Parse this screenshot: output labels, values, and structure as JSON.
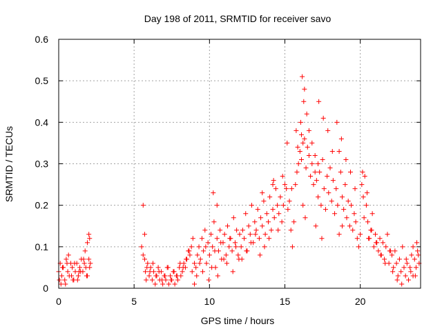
{
  "chart_data": {
    "type": "scatter",
    "title": "Day 198 of 2011, SRMTID for receiver savo",
    "xlabel": "GPS time / hours",
    "ylabel": "SRMTID / TECUs",
    "xlim": [
      0,
      24
    ],
    "ylim": [
      0,
      0.6
    ],
    "xticks": [
      0,
      5,
      10,
      15,
      20
    ],
    "xtick_labels": [
      "0",
      "5",
      "10",
      "15",
      "20"
    ],
    "yticks": [
      0,
      0.1,
      0.2,
      0.3,
      0.4,
      0.5,
      0.6
    ],
    "ytick_labels": [
      "0",
      "0.1",
      "0.2",
      "0.3",
      "0.4",
      "0.5",
      "0.6"
    ],
    "grid": true,
    "marker": "+",
    "color": "#ff0000",
    "series": [
      {
        "name": "SRMTID",
        "x": [
          0.0,
          0.1,
          0.2,
          0.3,
          0.4,
          0.5,
          0.6,
          0.7,
          0.8,
          0.9,
          1.0,
          1.1,
          1.2,
          1.3,
          1.4,
          1.5,
          1.6,
          1.7,
          1.8,
          1.9,
          2.0,
          2.1,
          0.05,
          0.25,
          0.45,
          0.65,
          0.85,
          1.05,
          1.25,
          1.45,
          1.65,
          1.85,
          2.05,
          0.15,
          0.55,
          0.95,
          1.35,
          1.75,
          2.0,
          1.9,
          2.05,
          5.5,
          5.6,
          5.7,
          5.75,
          5.8,
          5.9,
          6.0,
          6.1,
          6.2,
          6.3,
          6.4,
          6.5,
          6.6,
          6.7,
          6.8,
          6.9,
          7.0,
          7.1,
          7.2,
          7.3,
          7.4,
          7.5,
          7.6,
          7.7,
          7.8,
          7.9,
          8.0,
          8.1,
          8.2,
          8.3,
          8.4,
          8.5,
          8.6,
          8.7,
          8.8,
          8.9,
          9.0,
          5.6,
          5.7,
          5.85,
          6.05,
          6.25,
          6.45,
          6.65,
          6.85,
          7.05,
          7.25,
          7.45,
          7.65,
          7.85,
          8.05,
          8.25,
          8.45,
          8.65,
          8.85,
          9.1,
          9.2,
          9.3,
          9.4,
          9.5,
          9.6,
          9.7,
          9.8,
          9.9,
          10.0,
          10.1,
          10.2,
          10.3,
          10.4,
          10.5,
          10.6,
          10.7,
          10.8,
          10.9,
          11.0,
          11.1,
          11.2,
          11.3,
          11.4,
          11.5,
          11.6,
          11.7,
          11.8,
          11.9,
          12.0,
          9.15,
          9.35,
          9.55,
          9.75,
          9.95,
          10.15,
          10.35,
          10.55,
          10.75,
          10.95,
          11.15,
          11.35,
          11.55,
          11.75,
          11.95,
          10.25,
          10.5,
          9.0,
          12.1,
          12.2,
          12.3,
          12.4,
          12.5,
          12.6,
          12.7,
          12.8,
          12.9,
          13.0,
          13.1,
          13.2,
          13.3,
          13.4,
          13.5,
          13.6,
          13.7,
          13.8,
          13.9,
          14.0,
          14.1,
          14.2,
          14.3,
          14.4,
          14.5,
          14.6,
          14.7,
          14.8,
          14.9,
          15.0,
          12.15,
          12.45,
          12.75,
          13.05,
          13.35,
          13.65,
          13.95,
          14.25,
          14.55,
          14.85,
          13.5,
          14.2,
          15.1,
          15.2,
          15.3,
          15.4,
          15.5,
          15.6,
          15.7,
          15.8,
          15.9,
          16.0,
          16.1,
          16.2,
          16.3,
          16.4,
          16.5,
          16.6,
          16.7,
          16.8,
          16.9,
          17.0,
          15.15,
          15.45,
          15.75,
          16.05,
          16.25,
          16.15,
          16.3,
          16.45,
          16.6,
          16.8,
          17.0,
          17.2,
          16.2,
          16.35,
          15.85,
          16.1,
          17.1,
          17.2,
          17.3,
          17.4,
          17.5,
          17.6,
          17.7,
          17.8,
          17.9,
          18.0,
          18.1,
          18.2,
          18.3,
          18.4,
          18.5,
          18.6,
          18.7,
          18.8,
          18.9,
          19.0,
          19.1,
          19.2,
          19.3,
          19.4,
          19.5,
          19.6,
          19.7,
          19.8,
          19.9,
          20.0,
          17.25,
          17.55,
          17.85,
          18.15,
          18.45,
          18.75,
          19.05,
          19.35,
          19.65,
          17.05,
          17.45,
          18.6,
          18.8,
          20.1,
          20.2,
          20.3,
          20.4,
          20.5,
          20.6,
          20.7,
          20.8,
          20.9,
          21.0,
          21.1,
          21.2,
          21.3,
          21.4,
          21.5,
          21.6,
          21.7,
          21.8,
          21.9,
          22.0,
          20.15,
          20.45,
          20.75,
          21.05,
          21.35,
          21.65,
          21.95,
          20.25,
          20.55,
          22.1,
          22.2,
          22.3,
          22.4,
          22.5,
          22.6,
          22.7,
          22.8,
          22.9,
          23.0,
          23.1,
          23.2,
          23.3,
          23.4,
          23.5,
          23.6,
          23.7,
          23.8,
          23.9,
          22.15,
          22.45,
          22.75,
          23.05,
          23.35,
          23.65,
          23.85,
          23.5,
          23.75
        ],
        "y": [
          0.04,
          0.06,
          0.03,
          0.05,
          0.02,
          0.07,
          0.04,
          0.03,
          0.06,
          0.05,
          0.02,
          0.04,
          0.06,
          0.03,
          0.05,
          0.07,
          0.04,
          0.06,
          0.05,
          0.03,
          0.07,
          0.06,
          0.02,
          0.05,
          0.01,
          0.08,
          0.03,
          0.06,
          0.02,
          0.04,
          0.07,
          0.03,
          0.05,
          0.01,
          0.06,
          0.02,
          0.04,
          0.09,
          0.13,
          0.11,
          0.12,
          0.1,
          0.2,
          0.13,
          0.04,
          0.02,
          0.06,
          0.03,
          0.05,
          0.02,
          0.04,
          0.01,
          0.03,
          0.05,
          0.02,
          0.04,
          0.01,
          0.03,
          0.02,
          0.05,
          0.01,
          0.03,
          0.02,
          0.04,
          0.01,
          0.03,
          0.02,
          0.05,
          0.03,
          0.04,
          0.06,
          0.05,
          0.07,
          0.09,
          0.08,
          0.1,
          0.12,
          0.06,
          0.08,
          0.07,
          0.05,
          0.04,
          0.06,
          0.03,
          0.04,
          0.02,
          0.03,
          0.05,
          0.02,
          0.04,
          0.03,
          0.06,
          0.05,
          0.07,
          0.09,
          0.04,
          0.05,
          0.08,
          0.1,
          0.07,
          0.12,
          0.09,
          0.14,
          0.06,
          0.11,
          0.08,
          0.13,
          0.1,
          0.16,
          0.05,
          0.12,
          0.09,
          0.14,
          0.07,
          0.11,
          0.13,
          0.08,
          0.15,
          0.1,
          0.12,
          0.09,
          0.17,
          0.11,
          0.14,
          0.08,
          0.13,
          0.03,
          0.06,
          0.04,
          0.1,
          0.02,
          0.05,
          0.09,
          0.03,
          0.11,
          0.07,
          0.06,
          0.12,
          0.04,
          0.1,
          0.07,
          0.23,
          0.2,
          0.01,
          0.1,
          0.14,
          0.12,
          0.18,
          0.09,
          0.15,
          0.13,
          0.2,
          0.11,
          0.16,
          0.14,
          0.19,
          0.12,
          0.17,
          0.15,
          0.21,
          0.13,
          0.18,
          0.16,
          0.22,
          0.14,
          0.19,
          0.17,
          0.24,
          0.2,
          0.18,
          0.22,
          0.16,
          0.2,
          0.25,
          0.07,
          0.09,
          0.11,
          0.13,
          0.08,
          0.1,
          0.12,
          0.26,
          0.14,
          0.27,
          0.23,
          0.25,
          0.24,
          0.19,
          0.21,
          0.14,
          0.1,
          0.16,
          0.25,
          0.28,
          0.3,
          0.33,
          0.31,
          0.35,
          0.36,
          0.29,
          0.34,
          0.32,
          0.27,
          0.3,
          0.25,
          0.28,
          0.35,
          0.24,
          0.38,
          0.4,
          0.45,
          0.51,
          0.48,
          0.42,
          0.38,
          0.35,
          0.32,
          0.3,
          0.2,
          0.17,
          0.34,
          0.37,
          0.26,
          0.22,
          0.28,
          0.2,
          0.31,
          0.24,
          0.19,
          0.27,
          0.23,
          0.29,
          0.21,
          0.26,
          0.18,
          0.24,
          0.2,
          0.33,
          0.28,
          0.22,
          0.19,
          0.25,
          0.17,
          0.21,
          0.15,
          0.2,
          0.14,
          0.18,
          0.16,
          0.12,
          0.1,
          0.13,
          0.45,
          0.41,
          0.38,
          0.33,
          0.4,
          0.36,
          0.31,
          0.28,
          0.24,
          0.15,
          0.12,
          0.13,
          0.15,
          0.25,
          0.22,
          0.27,
          0.2,
          0.16,
          0.12,
          0.14,
          0.18,
          0.1,
          0.13,
          0.11,
          0.09,
          0.12,
          0.08,
          0.11,
          0.07,
          0.1,
          0.13,
          0.06,
          0.09,
          0.28,
          0.23,
          0.14,
          0.11,
          0.08,
          0.06,
          0.09,
          0.17,
          0.12,
          0.08,
          0.05,
          0.09,
          0.06,
          0.03,
          0.07,
          0.04,
          0.1,
          0.05,
          0.03,
          0.06,
          0.02,
          0.05,
          0.08,
          0.03,
          0.07,
          0.05,
          0.09,
          0.06,
          0.04,
          0.02,
          0.01,
          0.07,
          0.04,
          0.03,
          0.08,
          0.1,
          0.11
        ]
      }
    ]
  }
}
